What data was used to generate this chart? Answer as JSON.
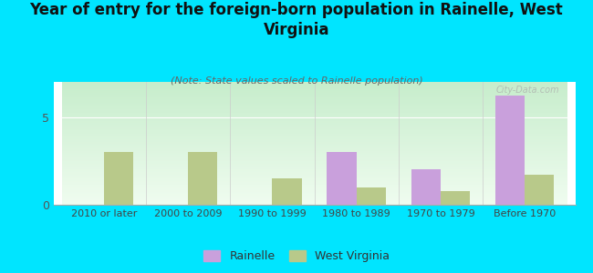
{
  "title": "Year of entry for the foreign-born population in Rainelle, West\nVirginia",
  "subtitle": "(Note: State values scaled to Rainelle population)",
  "categories": [
    "2010 or later",
    "2000 to 2009",
    "1990 to 1999",
    "1980 to 1989",
    "1970 to 1979",
    "Before 1970"
  ],
  "rainelle_values": [
    0,
    0,
    0,
    3.0,
    2.0,
    6.2
  ],
  "wv_values": [
    3.0,
    3.0,
    1.5,
    1.0,
    0.8,
    1.7
  ],
  "rainelle_color": "#c9a0dc",
  "wv_color": "#b8c98a",
  "outer_bg": "#00e5ff",
  "ylim": [
    0,
    7
  ],
  "yticks": [
    0,
    5
  ],
  "bar_width": 0.35,
  "legend_rainelle": "Rainelle",
  "legend_wv": "West Virginia",
  "title_fontsize": 12,
  "subtitle_fontsize": 8
}
